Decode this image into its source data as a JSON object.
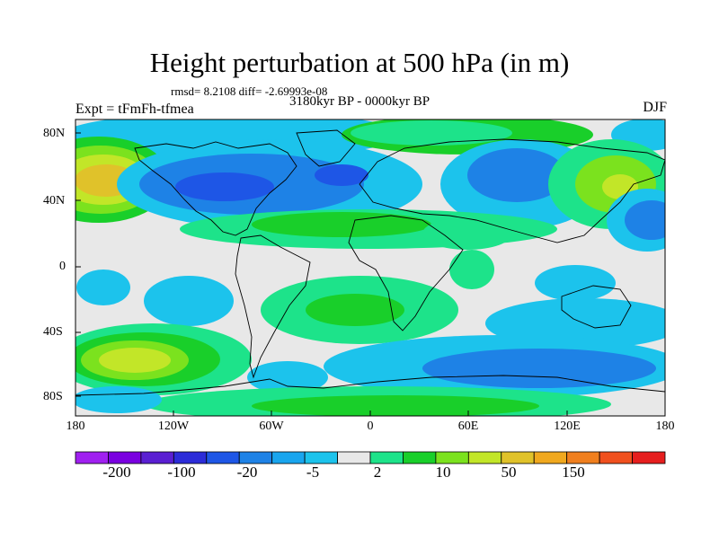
{
  "title": "Height perturbation at 500 hPa (in m)",
  "stats_line": "rmsd= 8.2108 diff= -2.69993e-08",
  "subtitle": "3180kyr BP - 0000kyr BP",
  "experiment": "Expt = tFmFh-tfmea",
  "season": "DJF",
  "axes": {
    "lat_labels": [
      "80N",
      "40N",
      "0",
      "40S",
      "80S"
    ],
    "lon_labels": [
      "180",
      "120W",
      "60W",
      "0",
      "60E",
      "120E",
      "180"
    ]
  },
  "colorbar": {
    "colors": [
      "#a020f0",
      "#7a00e0",
      "#5a1fd2",
      "#2c2cd8",
      "#1e56e6",
      "#1e82e6",
      "#19a5ee",
      "#1cc3ec",
      "#e8e8e8",
      "#1de38a",
      "#19cf2a",
      "#7be21e",
      "#c2e628",
      "#e0c22a",
      "#f0a81e",
      "#f07f1e",
      "#f0501e",
      "#e61e1e"
    ],
    "labels": [
      "-200",
      "-100",
      "-20",
      "-5",
      "2",
      "10",
      "50",
      "150"
    ]
  },
  "field_colors": {
    "neutral": "#e8e8e8",
    "weak_neg": "#1cc3ec",
    "mid_neg": "#1e82e6",
    "strong_neg": "#1e56e6",
    "weak_pos": "#1de38a",
    "mid_pos": "#19cf2a",
    "pos3": "#7be21e",
    "pos4": "#c2e628",
    "pos5": "#e0c22a",
    "pos6": "#f0a81e"
  }
}
